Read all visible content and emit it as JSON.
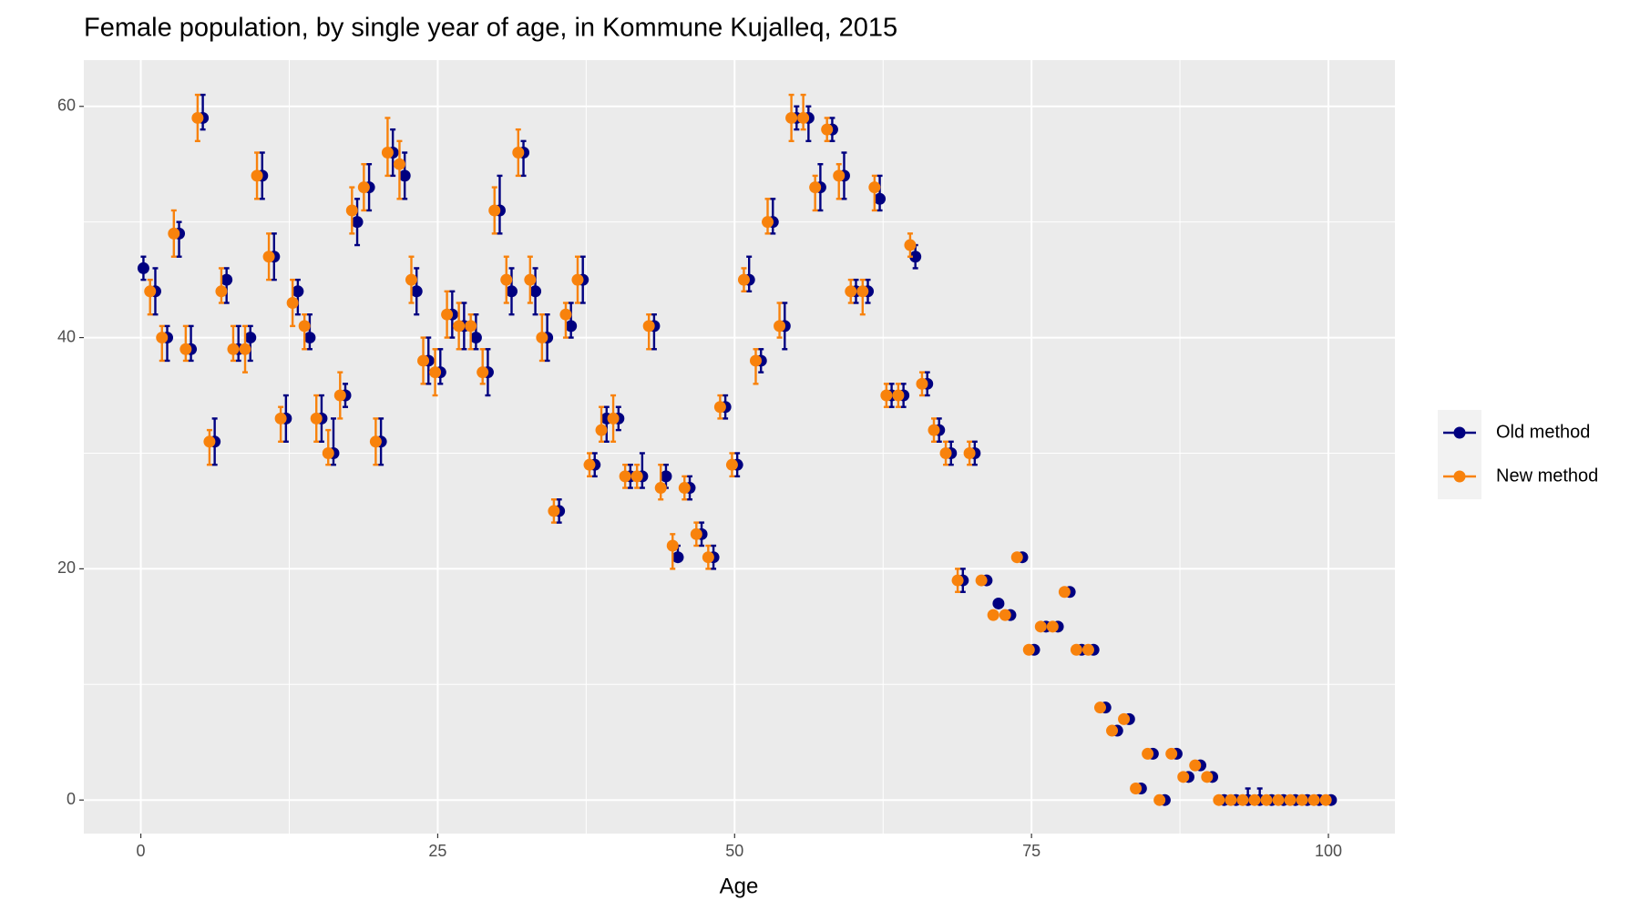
{
  "chart_data": {
    "type": "errorbar",
    "title": "Female population, by single year of age, in Kommune Kujalleq, 2015",
    "x_label": "Age",
    "x": [
      0,
      1,
      2,
      3,
      4,
      5,
      6,
      7,
      8,
      9,
      10,
      11,
      12,
      13,
      14,
      15,
      16,
      17,
      18,
      19,
      20,
      21,
      22,
      23,
      24,
      25,
      26,
      27,
      28,
      29,
      30,
      31,
      32,
      33,
      34,
      35,
      36,
      37,
      38,
      39,
      40,
      41,
      42,
      43,
      44,
      45,
      46,
      47,
      48,
      49,
      50,
      51,
      52,
      53,
      54,
      55,
      56,
      57,
      58,
      59,
      60,
      61,
      62,
      63,
      64,
      65,
      66,
      67,
      68,
      69,
      70,
      71,
      72,
      73,
      74,
      75,
      76,
      77,
      78,
      79,
      80,
      81,
      82,
      83,
      84,
      85,
      86,
      87,
      88,
      89,
      90,
      91,
      92,
      93,
      94,
      95,
      96,
      97,
      98,
      99,
      100
    ],
    "series": [
      {
        "name": "Old method",
        "color": "#000080",
        "values": [
          46,
          44,
          40,
          49,
          39,
          59,
          31,
          45,
          39,
          40,
          54,
          47,
          33,
          44,
          40,
          33,
          30,
          35,
          50,
          53,
          31,
          56,
          54,
          44,
          38,
          37,
          42,
          41,
          40,
          37,
          51,
          44,
          56,
          44,
          40,
          25,
          41,
          45,
          29,
          33,
          33,
          28,
          28,
          41,
          28,
          21,
          27,
          23,
          21,
          34,
          29,
          45,
          38,
          50,
          41,
          59,
          59,
          53,
          58,
          54,
          44,
          44,
          52,
          35,
          35,
          47,
          36,
          32,
          30,
          19,
          30,
          19,
          17,
          16,
          21,
          13,
          15,
          15,
          18,
          13,
          13,
          8,
          6,
          7,
          1,
          4,
          0,
          4,
          2,
          3,
          2,
          0,
          0,
          0,
          0,
          0,
          0,
          0,
          0,
          0,
          0
        ],
        "lower": [
          45,
          42,
          38,
          47,
          38,
          58,
          29,
          43,
          38,
          38,
          52,
          45,
          31,
          42,
          39,
          31,
          29,
          34,
          48,
          51,
          29,
          54,
          52,
          42,
          36,
          36,
          40,
          39,
          39,
          35,
          49,
          42,
          54,
          42,
          38,
          24,
          40,
          43,
          28,
          31,
          32,
          27,
          27,
          39,
          27,
          21,
          26,
          22,
          20,
          33,
          28,
          44,
          37,
          49,
          39,
          58,
          57,
          51,
          57,
          52,
          43,
          43,
          51,
          34,
          34,
          46,
          35,
          31,
          29,
          18,
          29,
          null,
          null,
          null,
          null,
          null,
          null,
          null,
          null,
          null,
          null,
          null,
          null,
          null,
          null,
          null,
          null,
          null,
          null,
          null,
          null,
          null,
          null,
          0,
          0,
          null,
          null,
          null,
          null,
          null,
          null
        ],
        "upper": [
          47,
          46,
          41,
          50,
          41,
          61,
          33,
          46,
          41,
          41,
          56,
          49,
          35,
          45,
          42,
          35,
          33,
          36,
          52,
          55,
          33,
          58,
          56,
          46,
          40,
          39,
          44,
          43,
          42,
          39,
          54,
          46,
          57,
          46,
          42,
          26,
          43,
          47,
          30,
          34,
          34,
          29,
          30,
          42,
          29,
          22,
          28,
          24,
          22,
          35,
          30,
          47,
          39,
          52,
          43,
          60,
          60,
          55,
          59,
          56,
          45,
          45,
          54,
          36,
          36,
          48,
          37,
          33,
          31,
          20,
          31,
          null,
          null,
          null,
          null,
          null,
          null,
          null,
          null,
          null,
          null,
          null,
          null,
          null,
          null,
          null,
          null,
          null,
          null,
          null,
          null,
          null,
          null,
          1,
          1,
          null,
          null,
          null,
          null,
          null,
          null
        ]
      },
      {
        "name": "New method",
        "color": "#f8820c",
        "values": [
          null,
          44,
          40,
          49,
          39,
          59,
          31,
          44,
          39,
          39,
          54,
          47,
          33,
          43,
          41,
          33,
          30,
          35,
          51,
          53,
          31,
          56,
          55,
          45,
          38,
          37,
          42,
          41,
          41,
          37,
          51,
          45,
          56,
          45,
          40,
          25,
          42,
          45,
          29,
          32,
          33,
          28,
          28,
          41,
          27,
          22,
          27,
          23,
          21,
          34,
          29,
          45,
          38,
          50,
          41,
          59,
          59,
          53,
          58,
          54,
          44,
          44,
          53,
          35,
          35,
          48,
          36,
          32,
          30,
          19,
          30,
          19,
          16,
          16,
          21,
          13,
          15,
          15,
          18,
          13,
          13,
          8,
          6,
          7,
          1,
          4,
          0,
          4,
          2,
          3,
          2,
          0,
          0,
          0,
          0,
          0,
          0,
          0,
          0,
          0,
          0
        ],
        "lower": [
          null,
          42,
          38,
          47,
          38,
          57,
          29,
          43,
          38,
          37,
          52,
          45,
          31,
          41,
          39,
          31,
          29,
          33,
          49,
          51,
          29,
          54,
          52,
          43,
          36,
          35,
          40,
          39,
          39,
          36,
          49,
          43,
          54,
          43,
          38,
          24,
          40,
          43,
          28,
          31,
          31,
          27,
          27,
          39,
          26,
          20,
          26,
          22,
          20,
          33,
          28,
          44,
          36,
          49,
          40,
          57,
          58,
          51,
          57,
          52,
          43,
          42,
          51,
          34,
          34,
          47,
          35,
          31,
          29,
          18,
          29,
          null,
          null,
          null,
          null,
          null,
          null,
          null,
          null,
          null,
          null,
          null,
          null,
          null,
          null,
          null,
          null,
          null,
          null,
          null,
          null,
          null,
          null,
          null,
          null,
          null,
          null,
          null,
          null,
          null,
          null
        ],
        "upper": [
          null,
          45,
          41,
          51,
          41,
          61,
          32,
          46,
          41,
          41,
          56,
          49,
          34,
          45,
          42,
          35,
          32,
          37,
          53,
          55,
          33,
          59,
          57,
          47,
          40,
          39,
          44,
          43,
          42,
          39,
          53,
          47,
          58,
          47,
          42,
          26,
          43,
          47,
          30,
          34,
          35,
          29,
          29,
          42,
          29,
          23,
          28,
          24,
          22,
          35,
          30,
          46,
          39,
          52,
          43,
          61,
          61,
          54,
          59,
          55,
          45,
          45,
          54,
          36,
          36,
          49,
          37,
          33,
          31,
          20,
          31,
          null,
          null,
          null,
          null,
          null,
          null,
          null,
          null,
          null,
          null,
          null,
          null,
          null,
          null,
          null,
          null,
          null,
          null,
          null,
          null,
          null,
          null,
          null,
          null,
          null,
          null,
          null,
          null,
          null,
          null
        ]
      }
    ],
    "xlim": [
      -4.8,
      105.6
    ],
    "ylim": [
      -2.9,
      64
    ],
    "xticks": [
      0,
      25,
      50,
      75,
      100
    ],
    "yticks": [
      0,
      20,
      40,
      60
    ],
    "grid": true,
    "legend": "right"
  }
}
